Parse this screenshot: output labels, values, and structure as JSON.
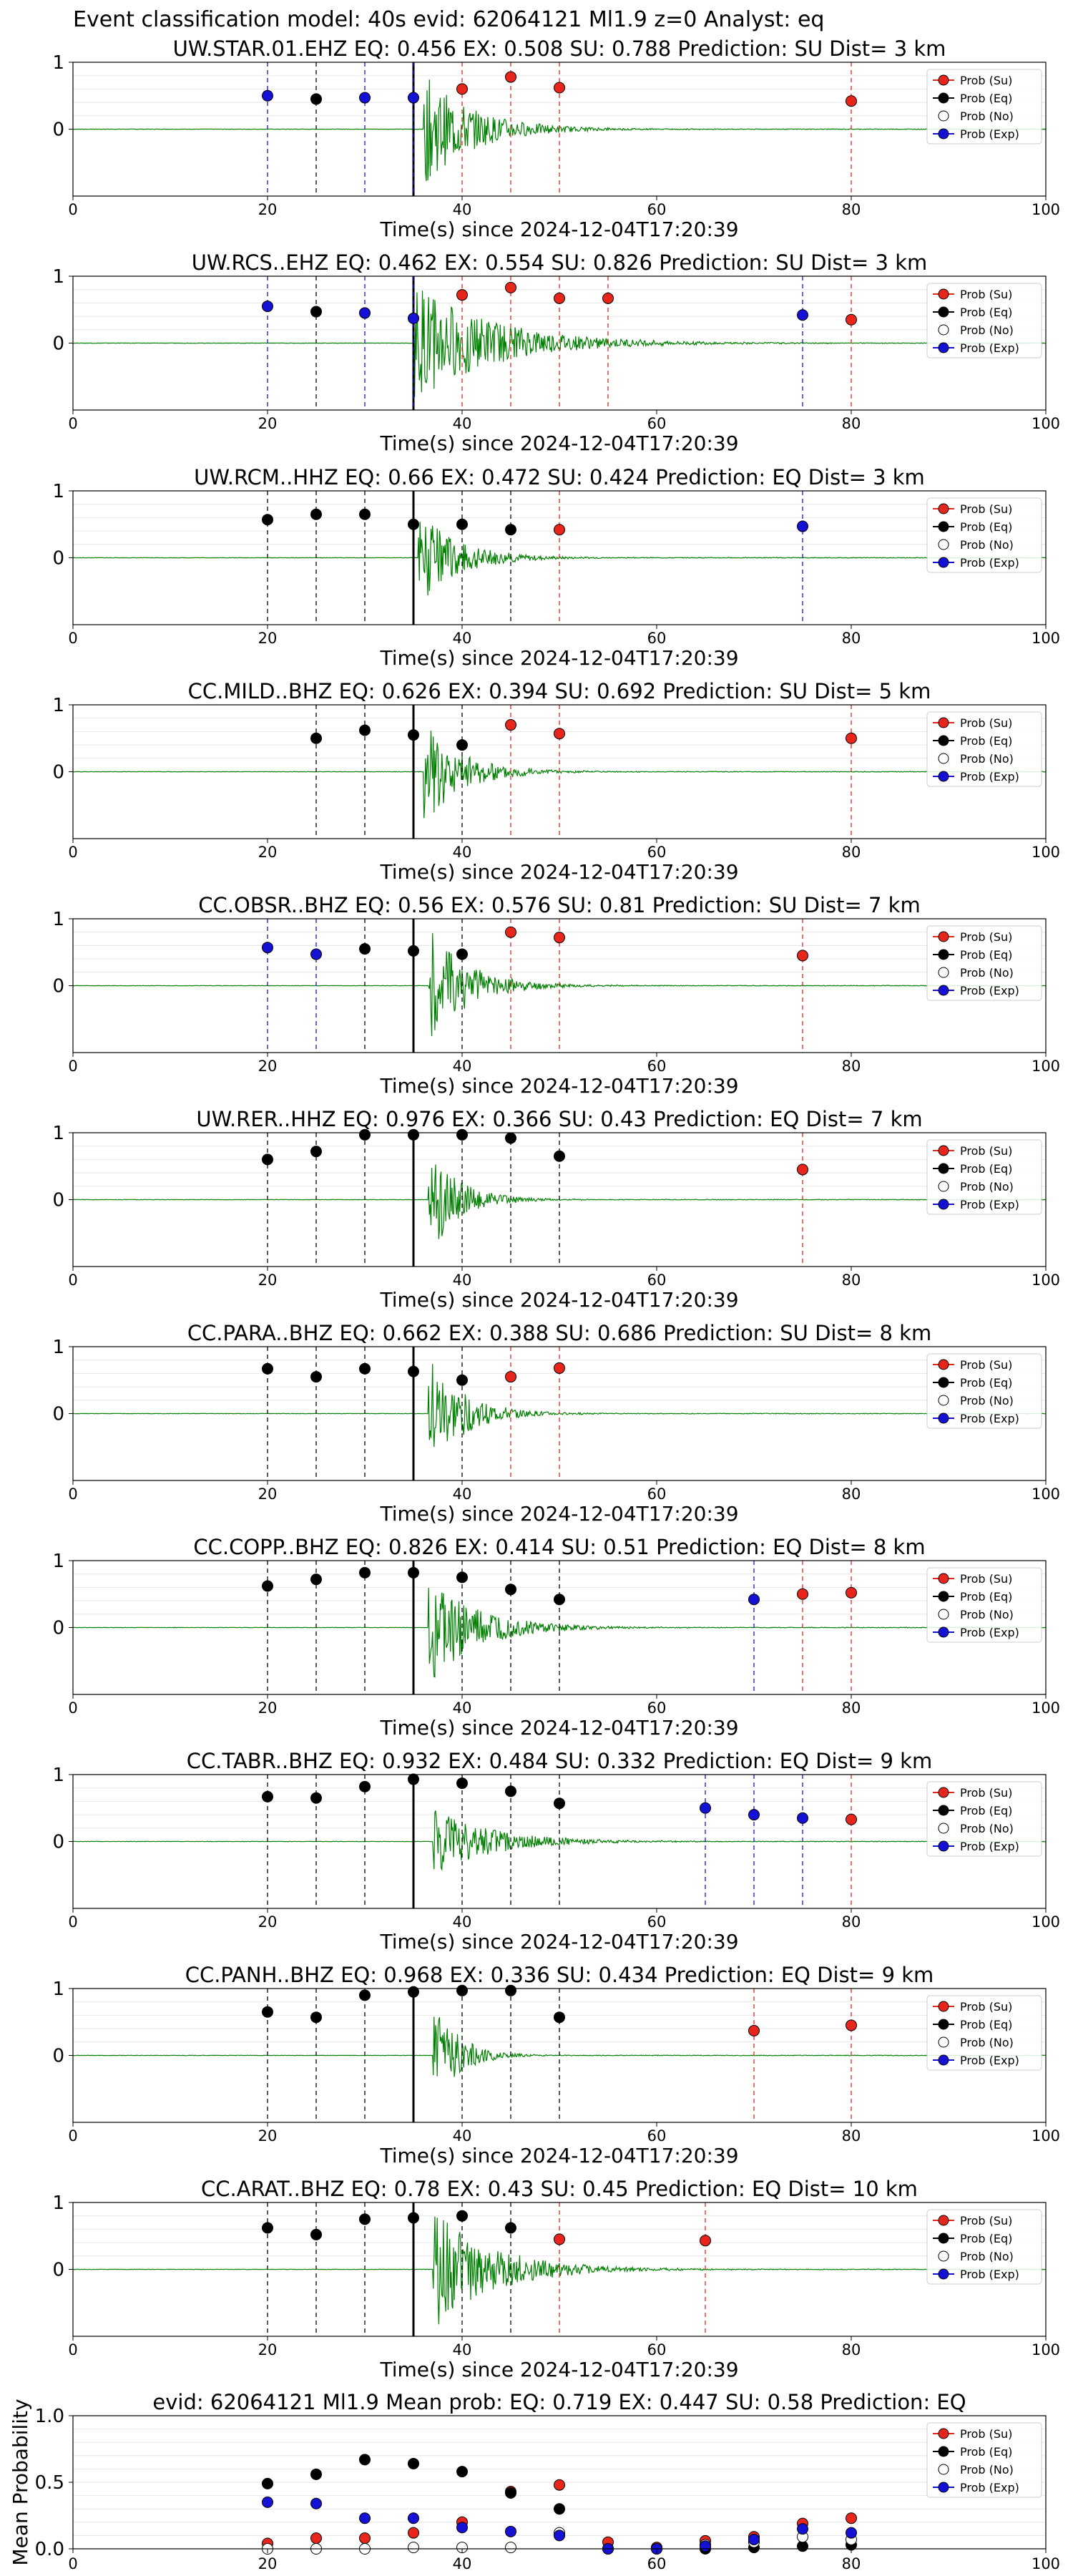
{
  "suptitle": "Event classification model: 40s evid: 62064121 Ml1.9 z=0 Analyst: eq",
  "xlabel": "Time(s) since 2024-12-04T17:20:39",
  "legend": [
    {
      "label": "Prob (Su)",
      "color": "#e8251b",
      "filled": true
    },
    {
      "label": "Prob (Eq)",
      "color": "#000000",
      "filled": true
    },
    {
      "label": "Prob (No)",
      "color": "#ffffff",
      "filled": false
    },
    {
      "label": "Prob (Exp)",
      "color": "#1410d4",
      "filled": true
    }
  ],
  "colors": {
    "su": "#e8251b",
    "eq": "#000000",
    "no": "#ffffff",
    "exp": "#1410d4",
    "waveform": "#008000",
    "pick": "#000000"
  },
  "chart_data": [
    {
      "type": "scatter",
      "title": "UW.STAR.01.EHZ   EQ: 0.456  EX: 0.508  SU: 0.788   Prediction: SU    Dist= 3 km",
      "xlim": [
        0,
        100
      ],
      "xticks": [
        0,
        20,
        40,
        60,
        80,
        100
      ],
      "yticks": [
        0,
        1
      ],
      "ylim": [
        -1,
        1
      ],
      "pick_time": 35,
      "onset": 36,
      "amp": 0.85,
      "decay": 5,
      "points": [
        {
          "x": 20,
          "y": 0.5,
          "class": "exp"
        },
        {
          "x": 25,
          "y": 0.45,
          "class": "eq"
        },
        {
          "x": 30,
          "y": 0.47,
          "class": "exp"
        },
        {
          "x": 35,
          "y": 0.47,
          "class": "exp"
        },
        {
          "x": 40,
          "y": 0.6,
          "class": "su"
        },
        {
          "x": 45,
          "y": 0.78,
          "class": "su"
        },
        {
          "x": 50,
          "y": 0.62,
          "class": "su"
        },
        {
          "x": 80,
          "y": 0.42,
          "class": "su"
        }
      ]
    },
    {
      "type": "scatter",
      "title": "UW.RCS..EHZ   EQ: 0.462  EX: 0.554  SU: 0.826   Prediction: SU    Dist= 3 km",
      "xlim": [
        0,
        100
      ],
      "xticks": [
        0,
        20,
        40,
        60,
        80,
        100
      ],
      "yticks": [
        0,
        1
      ],
      "ylim": [
        -1,
        1
      ],
      "pick_time": 35,
      "onset": 35,
      "amp": 0.9,
      "decay": 8,
      "points": [
        {
          "x": 20,
          "y": 0.55,
          "class": "exp"
        },
        {
          "x": 25,
          "y": 0.47,
          "class": "eq"
        },
        {
          "x": 30,
          "y": 0.45,
          "class": "exp"
        },
        {
          "x": 35,
          "y": 0.37,
          "class": "exp"
        },
        {
          "x": 40,
          "y": 0.72,
          "class": "su"
        },
        {
          "x": 45,
          "y": 0.83,
          "class": "su"
        },
        {
          "x": 50,
          "y": 0.67,
          "class": "su"
        },
        {
          "x": 55,
          "y": 0.67,
          "class": "su"
        },
        {
          "x": 75,
          "y": 0.42,
          "class": "exp"
        },
        {
          "x": 80,
          "y": 0.35,
          "class": "su"
        }
      ]
    },
    {
      "type": "scatter",
      "title": "UW.RCM..HHZ   EQ: 0.66  EX: 0.472  SU: 0.424   Prediction: EQ    Dist= 3 km",
      "xlim": [
        0,
        100
      ],
      "xticks": [
        0,
        20,
        40,
        60,
        80,
        100
      ],
      "yticks": [
        0,
        1
      ],
      "ylim": [
        -1,
        1
      ],
      "pick_time": 35,
      "onset": 35.5,
      "amp": 0.75,
      "decay": 4,
      "points": [
        {
          "x": 20,
          "y": 0.57,
          "class": "eq"
        },
        {
          "x": 25,
          "y": 0.65,
          "class": "eq"
        },
        {
          "x": 30,
          "y": 0.65,
          "class": "eq"
        },
        {
          "x": 35,
          "y": 0.5,
          "class": "eq"
        },
        {
          "x": 40,
          "y": 0.5,
          "class": "eq"
        },
        {
          "x": 45,
          "y": 0.42,
          "class": "eq"
        },
        {
          "x": 50,
          "y": 0.42,
          "class": "su"
        },
        {
          "x": 75,
          "y": 0.47,
          "class": "exp"
        }
      ]
    },
    {
      "type": "scatter",
      "title": "CC.MILD..BHZ   EQ: 0.626  EX: 0.394  SU: 0.692   Prediction: SU    Dist= 5 km",
      "xlim": [
        0,
        100
      ],
      "xticks": [
        0,
        20,
        40,
        60,
        80,
        100
      ],
      "yticks": [
        0,
        1
      ],
      "ylim": [
        -1,
        1
      ],
      "pick_time": 35,
      "onset": 36,
      "amp": 0.8,
      "decay": 4,
      "points": [
        {
          "x": 25,
          "y": 0.5,
          "class": "eq"
        },
        {
          "x": 30,
          "y": 0.62,
          "class": "eq"
        },
        {
          "x": 35,
          "y": 0.55,
          "class": "eq"
        },
        {
          "x": 40,
          "y": 0.4,
          "class": "eq"
        },
        {
          "x": 45,
          "y": 0.7,
          "class": "su"
        },
        {
          "x": 50,
          "y": 0.57,
          "class": "su"
        },
        {
          "x": 80,
          "y": 0.5,
          "class": "su"
        }
      ]
    },
    {
      "type": "scatter",
      "title": "CC.OBSR..BHZ   EQ: 0.56  EX: 0.576  SU: 0.81   Prediction: SU    Dist= 7 km",
      "xlim": [
        0,
        100
      ],
      "xticks": [
        0,
        20,
        40,
        60,
        80,
        100
      ],
      "yticks": [
        0,
        1
      ],
      "ylim": [
        -1,
        1
      ],
      "pick_time": 35,
      "onset": 36.5,
      "amp": 0.9,
      "decay": 4,
      "points": [
        {
          "x": 20,
          "y": 0.57,
          "class": "exp"
        },
        {
          "x": 25,
          "y": 0.47,
          "class": "exp"
        },
        {
          "x": 30,
          "y": 0.55,
          "class": "eq"
        },
        {
          "x": 35,
          "y": 0.52,
          "class": "eq"
        },
        {
          "x": 40,
          "y": 0.47,
          "class": "eq"
        },
        {
          "x": 45,
          "y": 0.8,
          "class": "su"
        },
        {
          "x": 50,
          "y": 0.72,
          "class": "su"
        },
        {
          "x": 75,
          "y": 0.45,
          "class": "su"
        }
      ]
    },
    {
      "type": "scatter",
      "title": "UW.RER..HHZ   EQ: 0.976  EX: 0.366  SU: 0.43   Prediction: EQ    Dist= 7 km",
      "xlim": [
        0,
        100
      ],
      "xticks": [
        0,
        20,
        40,
        60,
        80,
        100
      ],
      "yticks": [
        0,
        1
      ],
      "ylim": [
        -1,
        1
      ],
      "pick_time": 35,
      "onset": 36.5,
      "amp": 0.9,
      "decay": 3,
      "points": [
        {
          "x": 20,
          "y": 0.6,
          "class": "eq"
        },
        {
          "x": 25,
          "y": 0.72,
          "class": "eq"
        },
        {
          "x": 30,
          "y": 0.97,
          "class": "eq"
        },
        {
          "x": 35,
          "y": 0.97,
          "class": "eq"
        },
        {
          "x": 40,
          "y": 0.97,
          "class": "eq"
        },
        {
          "x": 45,
          "y": 0.92,
          "class": "eq"
        },
        {
          "x": 50,
          "y": 0.65,
          "class": "eq"
        },
        {
          "x": 75,
          "y": 0.45,
          "class": "su"
        }
      ]
    },
    {
      "type": "scatter",
      "title": "CC.PARA..BHZ   EQ: 0.662  EX: 0.388  SU: 0.686   Prediction: SU    Dist= 8 km",
      "xlim": [
        0,
        100
      ],
      "xticks": [
        0,
        20,
        40,
        60,
        80,
        100
      ],
      "yticks": [
        0,
        1
      ],
      "ylim": [
        -1,
        1
      ],
      "pick_time": 35,
      "onset": 36.5,
      "amp": 0.9,
      "decay": 3.5,
      "points": [
        {
          "x": 20,
          "y": 0.67,
          "class": "eq"
        },
        {
          "x": 25,
          "y": 0.55,
          "class": "eq"
        },
        {
          "x": 30,
          "y": 0.67,
          "class": "eq"
        },
        {
          "x": 35,
          "y": 0.63,
          "class": "eq"
        },
        {
          "x": 40,
          "y": 0.5,
          "class": "eq"
        },
        {
          "x": 45,
          "y": 0.55,
          "class": "su"
        },
        {
          "x": 50,
          "y": 0.68,
          "class": "su"
        }
      ]
    },
    {
      "type": "scatter",
      "title": "CC.COPP..BHZ   EQ: 0.826  EX: 0.414  SU: 0.51   Prediction: EQ    Dist= 8 km",
      "xlim": [
        0,
        100
      ],
      "xticks": [
        0,
        20,
        40,
        60,
        80,
        100
      ],
      "yticks": [
        0,
        1
      ],
      "ylim": [
        -1,
        1
      ],
      "pick_time": 35,
      "onset": 36.5,
      "amp": 0.85,
      "decay": 5,
      "points": [
        {
          "x": 20,
          "y": 0.62,
          "class": "eq"
        },
        {
          "x": 25,
          "y": 0.72,
          "class": "eq"
        },
        {
          "x": 30,
          "y": 0.82,
          "class": "eq"
        },
        {
          "x": 35,
          "y": 0.82,
          "class": "eq"
        },
        {
          "x": 40,
          "y": 0.75,
          "class": "eq"
        },
        {
          "x": 45,
          "y": 0.57,
          "class": "eq"
        },
        {
          "x": 50,
          "y": 0.42,
          "class": "eq"
        },
        {
          "x": 70,
          "y": 0.42,
          "class": "exp"
        },
        {
          "x": 75,
          "y": 0.5,
          "class": "su"
        },
        {
          "x": 80,
          "y": 0.52,
          "class": "su"
        }
      ]
    },
    {
      "type": "scatter",
      "title": "CC.TABR..BHZ   EQ: 0.932  EX: 0.484  SU: 0.332   Prediction: EQ    Dist= 9 km",
      "xlim": [
        0,
        100
      ],
      "xticks": [
        0,
        20,
        40,
        60,
        80,
        100
      ],
      "yticks": [
        0,
        1
      ],
      "ylim": [
        -1,
        1
      ],
      "pick_time": 35,
      "onset": 37,
      "amp": 0.5,
      "decay": 6,
      "points": [
        {
          "x": 20,
          "y": 0.67,
          "class": "eq"
        },
        {
          "x": 25,
          "y": 0.65,
          "class": "eq"
        },
        {
          "x": 30,
          "y": 0.82,
          "class": "eq"
        },
        {
          "x": 35,
          "y": 0.93,
          "class": "eq"
        },
        {
          "x": 40,
          "y": 0.87,
          "class": "eq"
        },
        {
          "x": 45,
          "y": 0.75,
          "class": "eq"
        },
        {
          "x": 50,
          "y": 0.57,
          "class": "eq"
        },
        {
          "x": 65,
          "y": 0.5,
          "class": "exp"
        },
        {
          "x": 70,
          "y": 0.4,
          "class": "exp"
        },
        {
          "x": 75,
          "y": 0.35,
          "class": "exp"
        },
        {
          "x": 80,
          "y": 0.33,
          "class": "su"
        }
      ]
    },
    {
      "type": "scatter",
      "title": "CC.PANH..BHZ   EQ: 0.968  EX: 0.336  SU: 0.434   Prediction: EQ    Dist= 9 km",
      "xlim": [
        0,
        100
      ],
      "xticks": [
        0,
        20,
        40,
        60,
        80,
        100
      ],
      "yticks": [
        0,
        1
      ],
      "ylim": [
        -1,
        1
      ],
      "pick_time": 35,
      "onset": 37,
      "amp": 0.9,
      "decay": 2.5,
      "points": [
        {
          "x": 20,
          "y": 0.65,
          "class": "eq"
        },
        {
          "x": 25,
          "y": 0.57,
          "class": "eq"
        },
        {
          "x": 30,
          "y": 0.9,
          "class": "eq"
        },
        {
          "x": 35,
          "y": 0.95,
          "class": "eq"
        },
        {
          "x": 40,
          "y": 0.97,
          "class": "eq"
        },
        {
          "x": 45,
          "y": 0.97,
          "class": "eq"
        },
        {
          "x": 50,
          "y": 0.57,
          "class": "eq"
        },
        {
          "x": 70,
          "y": 0.37,
          "class": "su"
        },
        {
          "x": 80,
          "y": 0.45,
          "class": "su"
        }
      ]
    },
    {
      "type": "scatter",
      "title": "CC.ARAT..BHZ   EQ: 0.78  EX: 0.43  SU: 0.45   Prediction: EQ    Dist= 10 km",
      "xlim": [
        0,
        100
      ],
      "xticks": [
        0,
        20,
        40,
        60,
        80,
        100
      ],
      "yticks": [
        0,
        1
      ],
      "ylim": [
        -1,
        1
      ],
      "pick_time": 35,
      "onset": 37,
      "amp": 0.95,
      "decay": 6,
      "points": [
        {
          "x": 20,
          "y": 0.62,
          "class": "eq"
        },
        {
          "x": 25,
          "y": 0.52,
          "class": "eq"
        },
        {
          "x": 30,
          "y": 0.75,
          "class": "eq"
        },
        {
          "x": 35,
          "y": 0.77,
          "class": "eq"
        },
        {
          "x": 40,
          "y": 0.8,
          "class": "eq"
        },
        {
          "x": 45,
          "y": 0.62,
          "class": "eq"
        },
        {
          "x": 50,
          "y": 0.45,
          "class": "su"
        },
        {
          "x": 65,
          "y": 0.43,
          "class": "su"
        }
      ]
    },
    {
      "type": "scatter",
      "title": "evid: 62064121  Ml1.9   Mean prob:   EQ: 0.719  EX: 0.447  SU: 0.58   Prediction: EQ",
      "ylabel": "Mean Probability",
      "xlim": [
        0,
        100
      ],
      "ylim": [
        0,
        1
      ],
      "xticks": [
        0,
        20,
        40,
        60,
        80,
        100
      ],
      "yticks": [
        0.0,
        0.5,
        1.0
      ],
      "series": [
        {
          "name": "Prob (Su)",
          "class": "su",
          "x": [
            20,
            25,
            30,
            35,
            40,
            45,
            50,
            55,
            60,
            65,
            70,
            75,
            80
          ],
          "y": [
            0.04,
            0.08,
            0.08,
            0.12,
            0.2,
            0.43,
            0.48,
            0.05,
            0.01,
            0.06,
            0.09,
            0.19,
            0.23
          ]
        },
        {
          "name": "Prob (Eq)",
          "class": "eq",
          "x": [
            20,
            25,
            30,
            35,
            40,
            45,
            50,
            55,
            60,
            65,
            70,
            75,
            80
          ],
          "y": [
            0.49,
            0.56,
            0.67,
            0.64,
            0.58,
            0.42,
            0.3,
            0.0,
            0.0,
            0.0,
            0.01,
            0.02,
            0.03
          ]
        },
        {
          "name": "Prob (No)",
          "class": "no",
          "x": [
            20,
            25,
            30,
            35,
            40,
            45,
            50,
            55,
            60,
            65,
            70,
            75,
            80
          ],
          "y": [
            0.0,
            0.0,
            0.0,
            0.01,
            0.01,
            0.01,
            0.12,
            0.0,
            0.0,
            0.03,
            0.05,
            0.09,
            0.07
          ]
        },
        {
          "name": "Prob (Exp)",
          "class": "exp",
          "x": [
            20,
            25,
            30,
            35,
            40,
            45,
            50,
            55,
            60,
            65,
            70,
            75,
            80
          ],
          "y": [
            0.35,
            0.34,
            0.23,
            0.23,
            0.16,
            0.13,
            0.1,
            0.0,
            0.0,
            0.02,
            0.07,
            0.15,
            0.12
          ]
        }
      ]
    }
  ]
}
